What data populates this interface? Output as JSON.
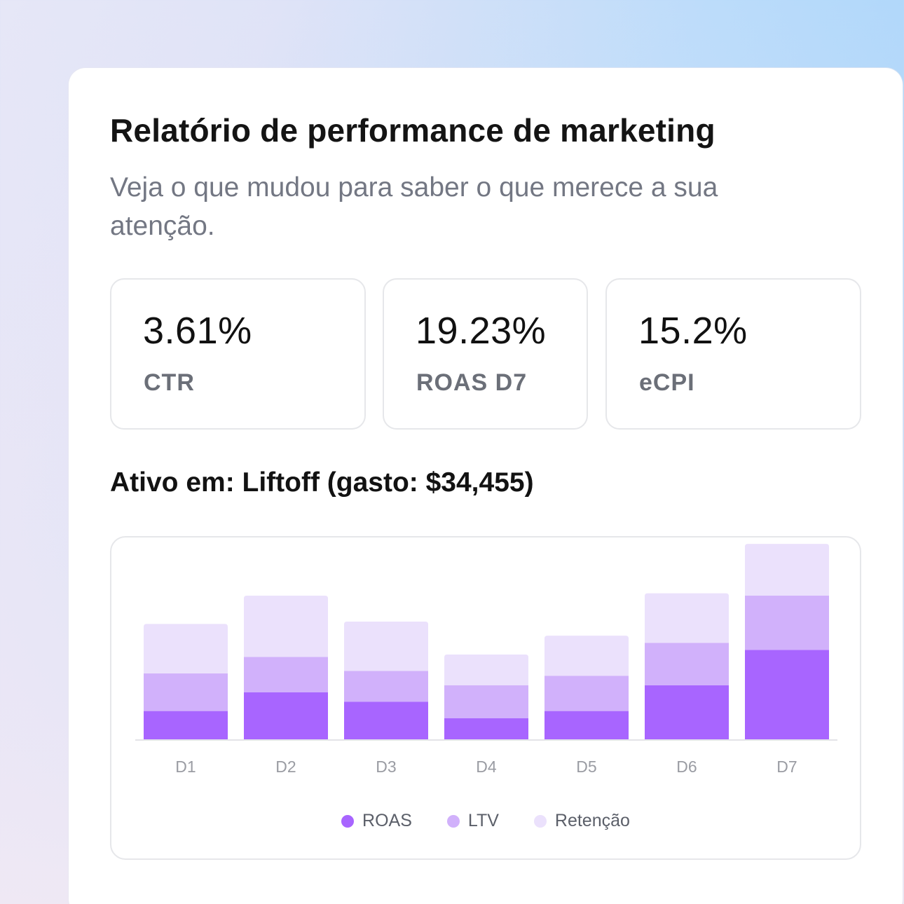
{
  "header": {
    "title": "Relatório de performance de marketing",
    "subtitle": "Veja o que mudou para saber o que merece a sua atenção."
  },
  "kpis": [
    {
      "value": "3.61%",
      "label": "CTR"
    },
    {
      "value": "19.23%",
      "label": "ROAS D7"
    },
    {
      "value": "15.2%",
      "label": "eCPI"
    }
  ],
  "active": {
    "text": "Ativo em: Liftoff (gasto: $34,455)"
  },
  "chart_data": {
    "type": "bar",
    "stacked": true,
    "categories": [
      "D1",
      "D2",
      "D3",
      "D4",
      "D5",
      "D6",
      "D7"
    ],
    "series": [
      {
        "name": "ROAS",
        "color": "#a865ff",
        "values": [
          36,
          60,
          48,
          27,
          36,
          69,
          114
        ]
      },
      {
        "name": "LTV",
        "color": "#d1b1fb",
        "values": [
          48,
          45,
          39,
          42,
          45,
          54,
          69
        ]
      },
      {
        "name": "Retenção",
        "color": "#ebe1fc",
        "values": [
          63,
          78,
          63,
          39,
          51,
          63,
          66
        ]
      }
    ],
    "ylim": [
      0,
      250
    ],
    "legend_position": "bottom",
    "grid": false
  }
}
